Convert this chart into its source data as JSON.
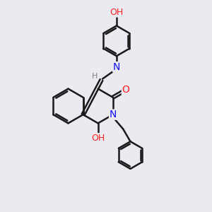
{
  "bg_color": "#eaeaf0",
  "bond_color": "#1a1a1a",
  "nitrogen_color": "#1010ff",
  "oxygen_color": "#ff2020",
  "hydrogen_color": "#808080",
  "bond_width": 1.8,
  "font_size": 9,
  "figsize": [
    3.0,
    3.0
  ],
  "dpi": 100,
  "xlim": [
    0,
    10
  ],
  "ylim": [
    0,
    10
  ]
}
